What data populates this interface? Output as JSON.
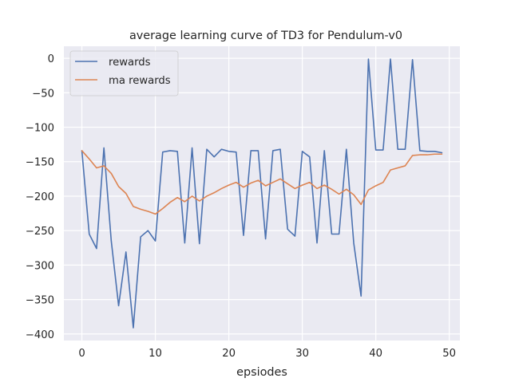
{
  "chart_data": {
    "type": "line",
    "title": "average learning curve of TD3 for Pendulum-v0",
    "xlabel": "epsiodes",
    "ylabel": "",
    "xlim": [
      -2.45,
      51.45
    ],
    "ylim": [
      -409.5,
      17.5
    ],
    "xticks": [
      0,
      10,
      20,
      30,
      40,
      50
    ],
    "xtick_labels": [
      "0",
      "10",
      "20",
      "30",
      "40",
      "50"
    ],
    "yticks": [
      0,
      -50,
      -100,
      -150,
      -200,
      -250,
      -300,
      -350,
      -400
    ],
    "ytick_labels": [
      "0",
      "−50",
      "−100",
      "−150",
      "−200",
      "−250",
      "−300",
      "−350",
      "−400"
    ],
    "grid": true,
    "legend_position": "top-left",
    "background": "#eaeaf2",
    "x": [
      0,
      1,
      2,
      3,
      4,
      5,
      6,
      7,
      8,
      9,
      10,
      11,
      12,
      13,
      14,
      15,
      16,
      17,
      18,
      19,
      20,
      21,
      22,
      23,
      24,
      25,
      26,
      27,
      28,
      29,
      30,
      31,
      32,
      33,
      34,
      35,
      36,
      37,
      38,
      39,
      40,
      41,
      42,
      43,
      44,
      45,
      46,
      47,
      48,
      49
    ],
    "series": [
      {
        "name": "rewards",
        "color": "#4c72b0",
        "values": [
          -134,
          -255,
          -276,
          -130,
          -265,
          -359,
          -281,
          -391,
          -259,
          -250,
          -265,
          -136,
          -134,
          -135,
          -268,
          -130,
          -269,
          -132,
          -143,
          -132,
          -135,
          -136,
          -257,
          -134,
          -134,
          -262,
          -134,
          -132,
          -248,
          -258,
          -135,
          -143,
          -268,
          -134,
          -255,
          -255,
          -132,
          -268,
          -345,
          -1,
          -133,
          -133,
          -1,
          -132,
          -132,
          -2,
          -134,
          -135,
          -135,
          -137
        ]
      },
      {
        "name": "ma rewards",
        "color": "#dd8452",
        "values": [
          -134,
          -146,
          -159,
          -156,
          -167,
          -186,
          -196,
          -215,
          -219,
          -222,
          -226,
          -218,
          -209,
          -202,
          -208,
          -200,
          -207,
          -200,
          -195,
          -189,
          -184,
          -180,
          -187,
          -181,
          -177,
          -185,
          -180,
          -175,
          -182,
          -189,
          -184,
          -180,
          -189,
          -184,
          -190,
          -197,
          -190,
          -198,
          -212,
          -191,
          -185,
          -180,
          -162,
          -159,
          -156,
          -141,
          -140,
          -140,
          -139,
          -139
        ]
      }
    ]
  }
}
